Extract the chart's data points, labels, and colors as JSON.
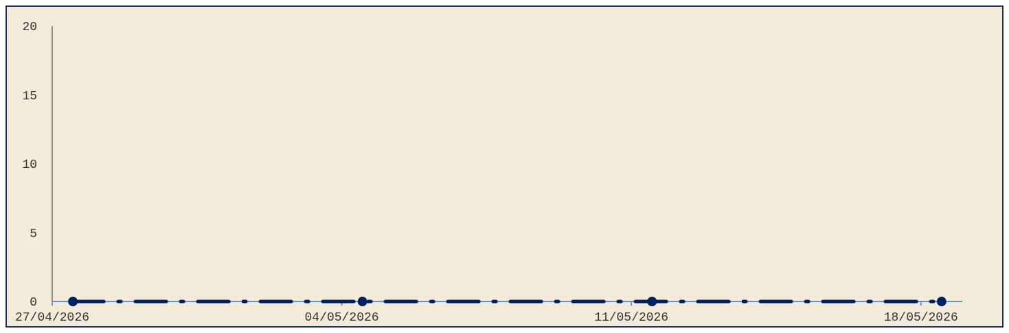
{
  "chart_data": {
    "type": "line",
    "x": [
      "2026-04-27T12:00",
      "2026-05-04T12:00",
      "2026-05-11T12:00",
      "2026-05-18T12:00"
    ],
    "series": [
      {
        "color": "#002060",
        "values": [
          0,
          0,
          0,
          0
        ]
      }
    ],
    "xlim": [
      "2026-04-27",
      "2026-05-19"
    ],
    "xticks": [
      {
        "value": "2026-04-27",
        "label": "27/04/2026"
      },
      {
        "value": "2026-05-04",
        "label": "04/05/2026"
      },
      {
        "value": "2026-05-11",
        "label": "11/05/2026"
      },
      {
        "value": "2026-05-18",
        "label": "18/05/2026"
      }
    ],
    "ylim": [
      0,
      20
    ],
    "yticks": [
      0,
      5,
      10,
      15,
      20
    ],
    "grid": false,
    "marker": "circle",
    "line_style": "dashed"
  }
}
